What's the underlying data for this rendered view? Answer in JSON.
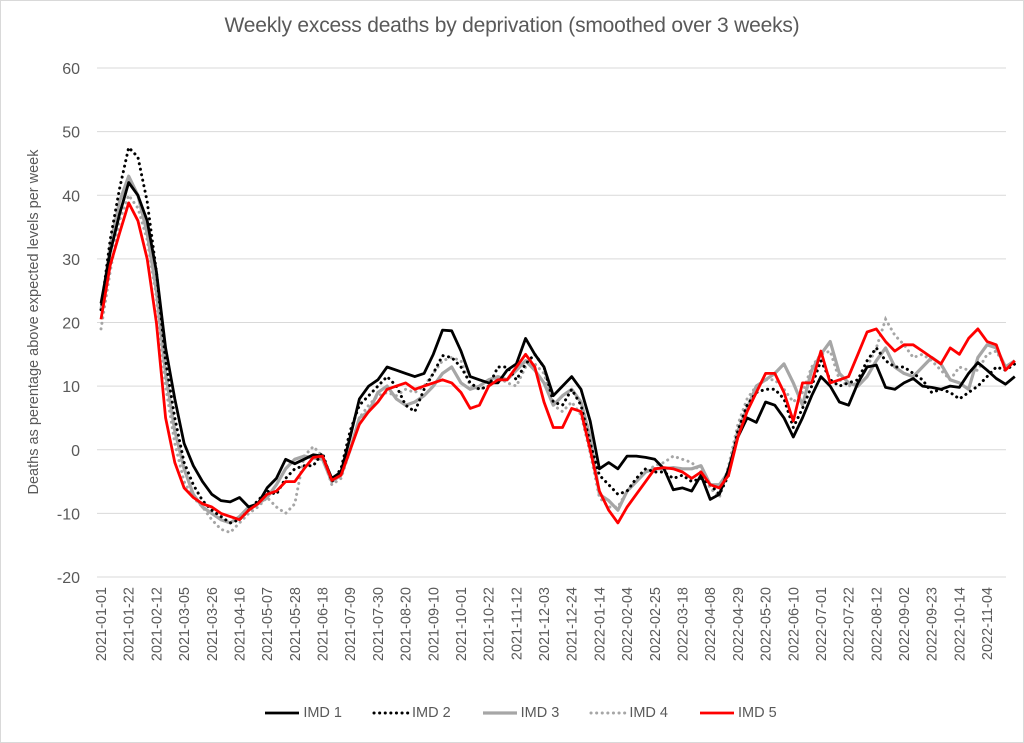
{
  "chart_data": {
    "type": "line",
    "title": "Weekly excess deaths by deprivation (smoothed over 3 weeks)",
    "xlabel": "",
    "ylabel": "Deaths as perentage above expected levels per week",
    "ylim": [
      -20,
      60
    ],
    "yticks": [
      -20,
      -10,
      0,
      10,
      20,
      30,
      40,
      50,
      60
    ],
    "grid": true,
    "legend_position": "bottom",
    "x_tick_labels": [
      "2021-01-01",
      "2021-01-22",
      "2021-02-12",
      "2021-03-05",
      "2021-03-26",
      "2021-04-16",
      "2021-05-07",
      "2021-05-28",
      "2021-06-18",
      "2021-07-09",
      "2021-07-30",
      "2021-08-20",
      "2021-09-10",
      "2021-10-01",
      "2021-10-22",
      "2021-11-12",
      "2021-12-03",
      "2021-12-24",
      "2022-01-14",
      "2022-02-04",
      "2022-02-25",
      "2022-03-18",
      "2022-04-08",
      "2022-04-29",
      "2022-05-20",
      "2022-06-10",
      "2022-07-01",
      "2022-07-22",
      "2022-08-12",
      "2022-09-02",
      "2022-09-23",
      "2022-10-14",
      "2022-11-04"
    ],
    "x_start": "2021-01-01",
    "x_step_weeks": 1,
    "series": [
      {
        "name": "IMD 1",
        "color": "#000000",
        "style": "solid",
        "values": [
          23,
          31,
          37,
          42,
          40,
          36,
          28,
          16,
          8,
          1,
          -2.5,
          -5,
          -7,
          -8,
          -8.2,
          -7.5,
          -9,
          -8.5,
          -6,
          -4.5,
          -1.5,
          -2.2,
          -1.5,
          -0.8,
          -1,
          -4.5,
          -3.5,
          2,
          8,
          10,
          11,
          13,
          12.5,
          12,
          11.5,
          12,
          15,
          18.8,
          18.7,
          15.5,
          11.5,
          11,
          10.5,
          10.5,
          12.5,
          13.5,
          17.5,
          15,
          13,
          8.5,
          10,
          11.5,
          9.5,
          4.5,
          -3,
          -2,
          -3,
          -1,
          -1,
          -1.2,
          -1.5,
          -3,
          -6.3,
          -6,
          -6.5,
          -4,
          -7.8,
          -7,
          -3,
          2,
          5,
          4.3,
          7.5,
          7,
          5,
          2,
          5,
          8.5,
          11.5,
          10,
          7.5,
          7,
          10.5,
          13,
          13.3,
          9.8,
          9.5,
          10.5,
          11.2,
          10,
          9.8,
          9.5,
          10,
          9.8,
          12,
          13.7,
          12.5,
          11.2,
          10.3,
          11.5
        ]
      },
      {
        "name": "IMD 2",
        "color": "#000000",
        "style": "dotted",
        "values": [
          22,
          33,
          41,
          47.5,
          46,
          39,
          28,
          14,
          5,
          -2,
          -5.5,
          -8,
          -9.5,
          -10.5,
          -11.5,
          -11,
          -9.5,
          -8,
          -6.5,
          -7,
          -4.5,
          -3,
          -2.5,
          -2.5,
          -0.5,
          -5,
          -3,
          3,
          7,
          8.5,
          10,
          11.5,
          10,
          7,
          6,
          9.5,
          12,
          14.8,
          14.5,
          13,
          10.5,
          9.5,
          10,
          13,
          13,
          11,
          13.5,
          15,
          13,
          7.5,
          7,
          9.5,
          7,
          1,
          -4,
          -5.5,
          -7,
          -6.5,
          -4.5,
          -3,
          -3.5,
          -3.5,
          -4.5,
          -4,
          -5,
          -4.5,
          -5.5,
          -7,
          -4,
          3,
          7,
          9,
          9.5,
          9.5,
          8,
          3.5,
          6.5,
          10,
          14,
          11,
          10,
          10.5,
          11,
          14,
          16,
          14,
          13,
          13,
          12,
          11,
          9,
          9.5,
          9,
          8,
          9,
          10,
          11.5,
          13,
          12.5,
          13.5
        ]
      },
      {
        "name": "IMD 3",
        "color": "#a6a6a6",
        "style": "solid",
        "values": [
          22,
          32,
          39,
          43,
          40,
          34,
          25,
          12,
          3,
          -3,
          -7,
          -9,
          -10,
          -11,
          -11.5,
          -10.5,
          -9,
          -8.5,
          -7.5,
          -5.5,
          -3,
          -1.5,
          -1,
          -1.3,
          -1.5,
          -5,
          -4,
          0,
          5,
          6,
          9,
          10,
          8,
          7,
          7.5,
          8.5,
          10,
          12,
          13,
          10.5,
          9.5,
          10,
          11,
          11.5,
          11,
          12.5,
          14,
          12.5,
          10.5,
          7,
          8.5,
          9.5,
          7.5,
          2,
          -7,
          -8,
          -9.5,
          -6.5,
          -5,
          -3.5,
          -3,
          -3,
          -2.8,
          -3,
          -3,
          -2.5,
          -5.5,
          -5.5,
          -3.5,
          3,
          6.5,
          10,
          11,
          12,
          13.5,
          10.5,
          7,
          12.5,
          15,
          17,
          12,
          10.5,
          10,
          11.5,
          14,
          16,
          13,
          12,
          11.5,
          13,
          14.5,
          13.5,
          11,
          10.5,
          9.5,
          14.5,
          16.5,
          16,
          13,
          14
        ]
      },
      {
        "name": "IMD 4",
        "color": "#a6a6a6",
        "style": "dotted",
        "values": [
          19,
          28,
          36,
          40,
          38,
          33,
          24,
          10,
          1,
          -5,
          -7.5,
          -9,
          -11,
          -12.5,
          -13,
          -11.5,
          -10,
          -9,
          -7.5,
          -9,
          -10,
          -8.5,
          -1,
          0.5,
          -1,
          -5.5,
          -4.5,
          0,
          5,
          7,
          8.5,
          9,
          8.5,
          9.5,
          9,
          10,
          12,
          14,
          14.5,
          14,
          10,
          9.5,
          10,
          11.5,
          10.5,
          10,
          13,
          13.5,
          12,
          7,
          6,
          7.5,
          5.5,
          -0.5,
          -7.5,
          -9,
          -9,
          -6.5,
          -5,
          -3.5,
          -2.5,
          -2,
          -1,
          -1.5,
          -2,
          -3.5,
          -6,
          -7.5,
          -2.5,
          4,
          8,
          10,
          11,
          11,
          9.5,
          7.5,
          9,
          13,
          15,
          15.5,
          11,
          10,
          10.5,
          13,
          16,
          20.5,
          18,
          16.5,
          14.5,
          15,
          14,
          12.5,
          11,
          13,
          12.5,
          12.5,
          15,
          15.5,
          13,
          14
        ]
      },
      {
        "name": "IMD 5",
        "color": "#ff0000",
        "style": "solid",
        "values": [
          20.5,
          29,
          34,
          38.8,
          36,
          30,
          20,
          5,
          -2,
          -6,
          -7.5,
          -8.5,
          -9,
          -10,
          -10.5,
          -11,
          -9.5,
          -8.5,
          -7,
          -6.5,
          -5,
          -5,
          -3,
          -1.2,
          -1,
          -4.8,
          -4,
          0,
          4,
          6,
          7.5,
          9.5,
          10,
          10.5,
          9.5,
          10,
          10.5,
          11,
          10.5,
          9,
          6.5,
          7,
          10,
          11,
          11,
          13,
          15,
          13,
          7.5,
          3.5,
          3.5,
          6.5,
          6,
          0,
          -6.5,
          -9.5,
          -11.5,
          -9,
          -7,
          -5,
          -3,
          -2.8,
          -3,
          -3.5,
          -4.5,
          -3.5,
          -5.5,
          -6,
          -4,
          2,
          6,
          9,
          12,
          12,
          9,
          4.5,
          10.5,
          10.5,
          15.5,
          10.5,
          11,
          11.5,
          15,
          18.5,
          19,
          17,
          15.5,
          16.5,
          16.5,
          15.5,
          14.5,
          13.5,
          16,
          15,
          17.5,
          19,
          17,
          16.5,
          12.5,
          14
        ]
      }
    ]
  },
  "legend": {
    "items": [
      "IMD 1",
      "IMD 2",
      "IMD 3",
      "IMD 4",
      "IMD 5"
    ]
  }
}
